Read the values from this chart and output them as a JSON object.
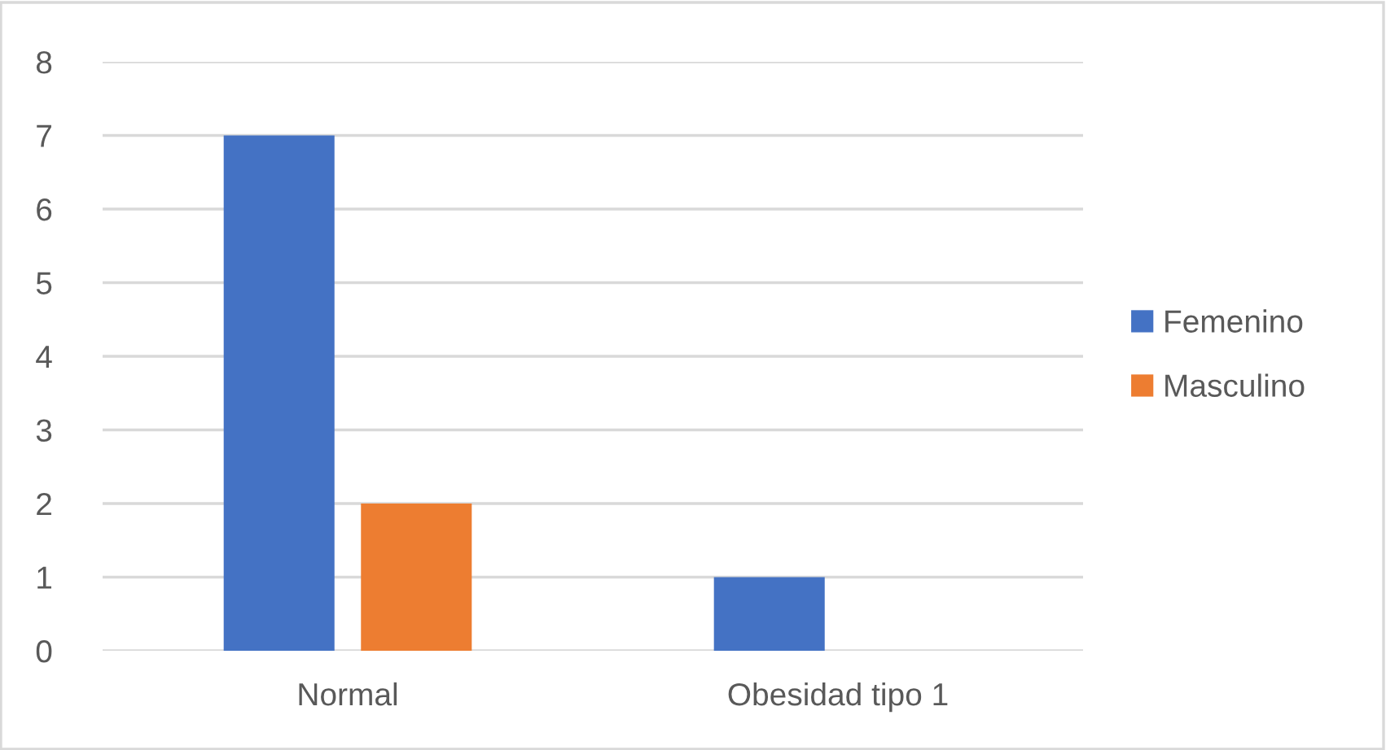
{
  "chart_data": {
    "type": "bar",
    "categories": [
      "Normal",
      "Obesidad tipo 1"
    ],
    "series": [
      {
        "name": "Femenino",
        "color": "#4472c4",
        "values": [
          7,
          1
        ]
      },
      {
        "name": "Masculino",
        "color": "#ed7d31",
        "values": [
          2,
          null
        ]
      }
    ],
    "ylim": [
      0,
      8
    ],
    "yticks": [
      0,
      1,
      2,
      3,
      4,
      5,
      6,
      7,
      8
    ],
    "grid": "y",
    "legend": "right"
  }
}
